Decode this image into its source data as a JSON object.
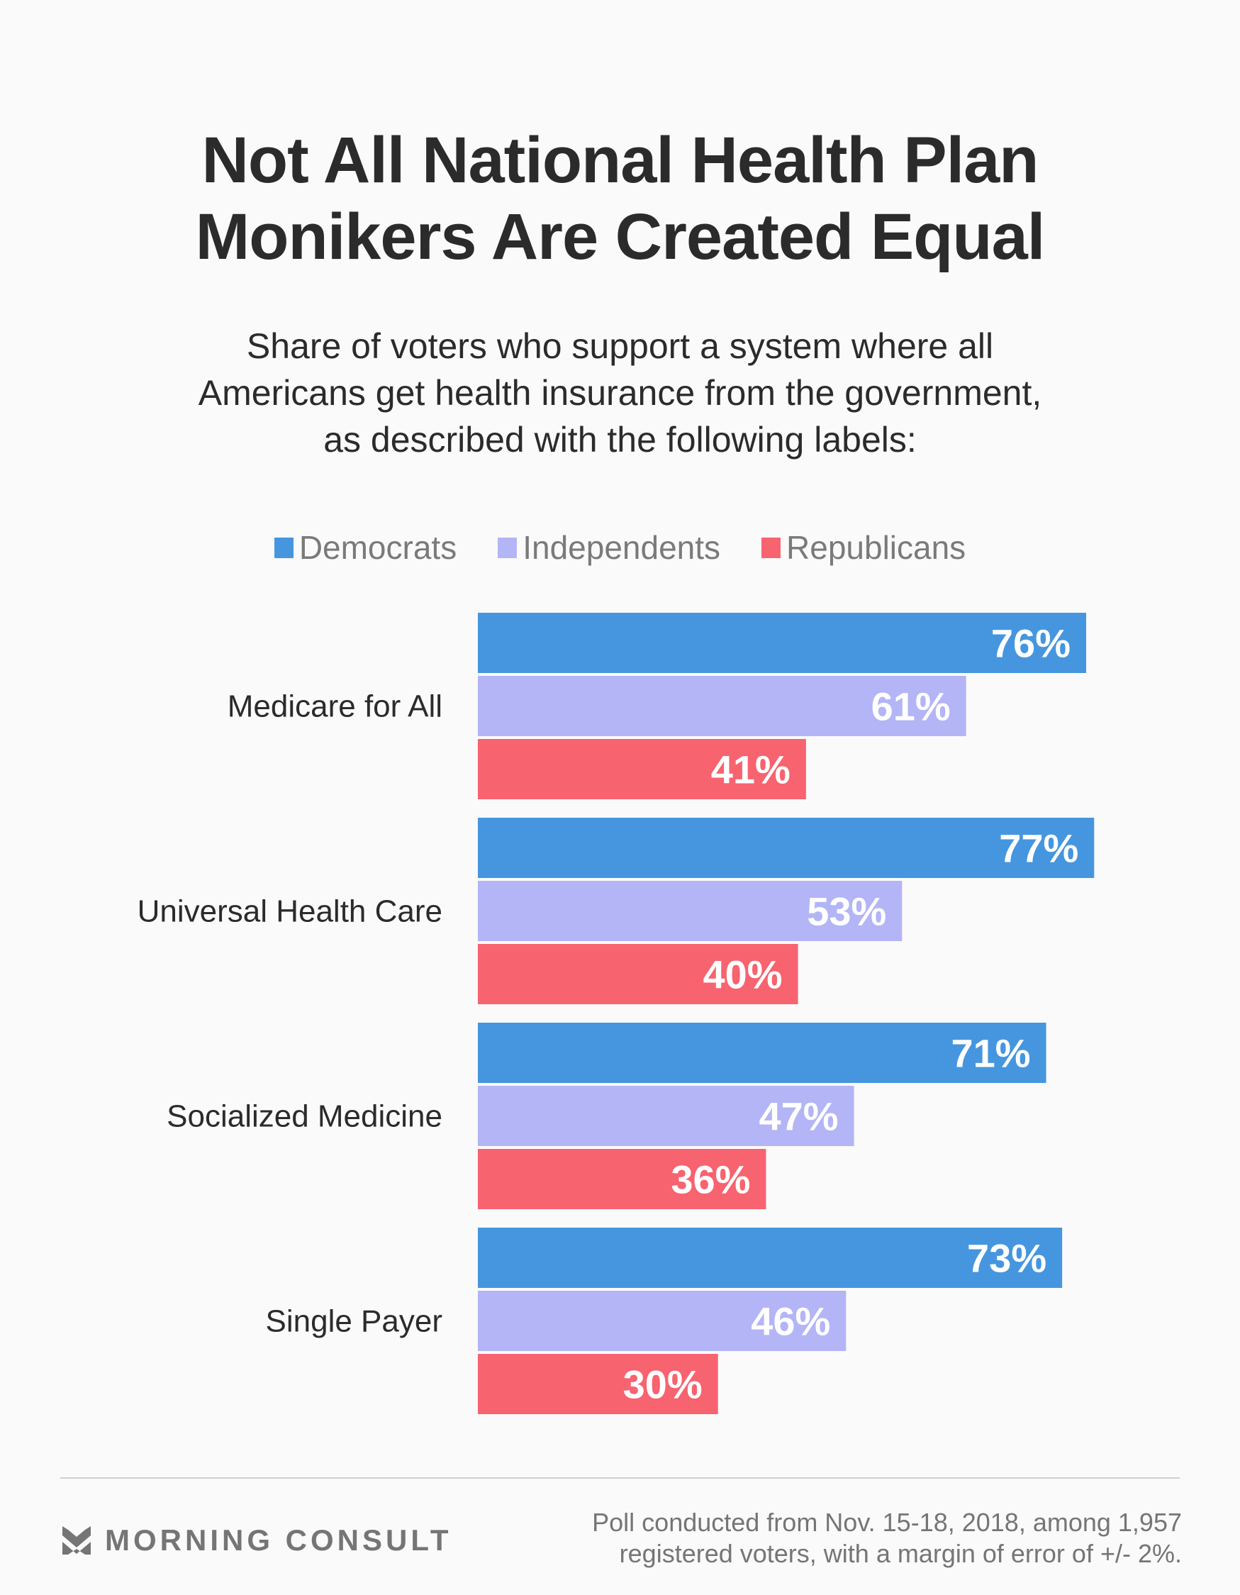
{
  "header": {
    "title_lines": [
      "Not All National Health Plan",
      "Monikers Are Created Equal"
    ],
    "subtitle_lines": [
      "Share of voters who support a system where all",
      "Americans get health insurance from the government,",
      "as described with the following labels:"
    ]
  },
  "legend": [
    {
      "label": "Democrats",
      "color": "#4596df"
    },
    {
      "label": "Independents",
      "color": "#b3b5f6"
    },
    {
      "label": "Republicans",
      "color": "#f7636f"
    }
  ],
  "chart_data": {
    "type": "bar",
    "orientation": "horizontal",
    "title": "Not All National Health Plan Monikers Are Created Equal",
    "subtitle": "Share of voters who support a system where all Americans get health insurance from the government, as described with the following labels:",
    "xlabel": "",
    "ylabel": "",
    "xlim": [
      0,
      100
    ],
    "grid": false,
    "legend_position": "top-center",
    "value_suffix": "%",
    "categories": [
      "Medicare for All",
      "Universal Health Care",
      "Socialized Medicine",
      "Single Payer"
    ],
    "series": [
      {
        "name": "Democrats",
        "color": "#4596df",
        "values": [
          76,
          77,
          71,
          73
        ]
      },
      {
        "name": "Independents",
        "color": "#b3b5f6",
        "values": [
          61,
          53,
          47,
          46
        ]
      },
      {
        "name": "Republicans",
        "color": "#f7636f",
        "values": [
          41,
          40,
          36,
          30
        ]
      }
    ]
  },
  "footer": {
    "logo_icon": "morning-consult-chevron-icon",
    "brand": "MORNING CONSULT",
    "note_lines": [
      "Poll conducted from Nov. 15-18, 2018, among 1,957",
      "registered voters, with a margin of error of +/- 2%."
    ],
    "brand_color": "#757575"
  }
}
